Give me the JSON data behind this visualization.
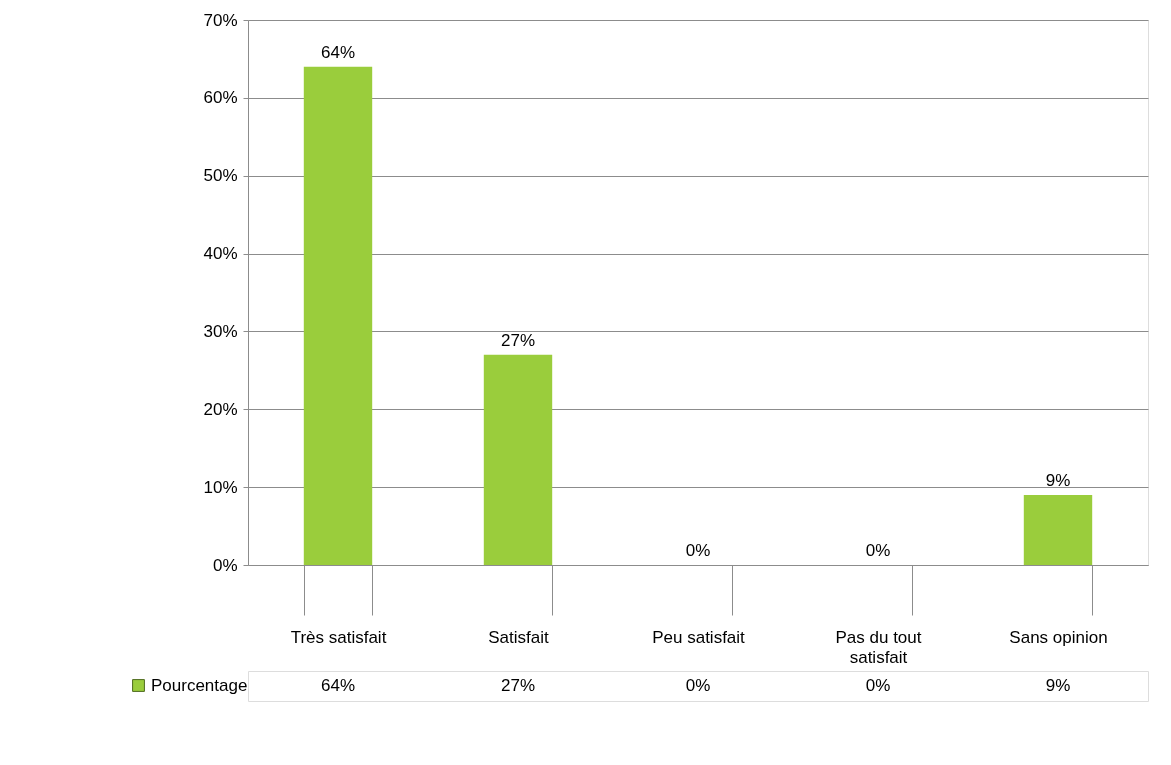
{
  "chart_data": {
    "type": "bar",
    "categories": [
      "Très satisfait",
      "Satisfait",
      "Peu satisfait",
      "Pas du tout satisfait",
      "Sans opinion"
    ],
    "series": [
      {
        "name": "Pourcentage",
        "color": "#9acd3c",
        "values": [
          64,
          27,
          0,
          0,
          9
        ],
        "value_labels": [
          "64%",
          "27%",
          "0%",
          "0%",
          "9%"
        ]
      }
    ],
    "ylim": [
      0,
      70
    ],
    "yticks": [
      {
        "value": 0,
        "label": "0%"
      },
      {
        "value": 10,
        "label": "10%"
      },
      {
        "value": 20,
        "label": "20%"
      },
      {
        "value": 30,
        "label": "30%"
      },
      {
        "value": 40,
        "label": "40%"
      },
      {
        "value": 50,
        "label": "50%"
      },
      {
        "value": 60,
        "label": "60%"
      },
      {
        "value": 70,
        "label": "70%"
      }
    ],
    "grid": "y",
    "legend": "bottom left"
  }
}
